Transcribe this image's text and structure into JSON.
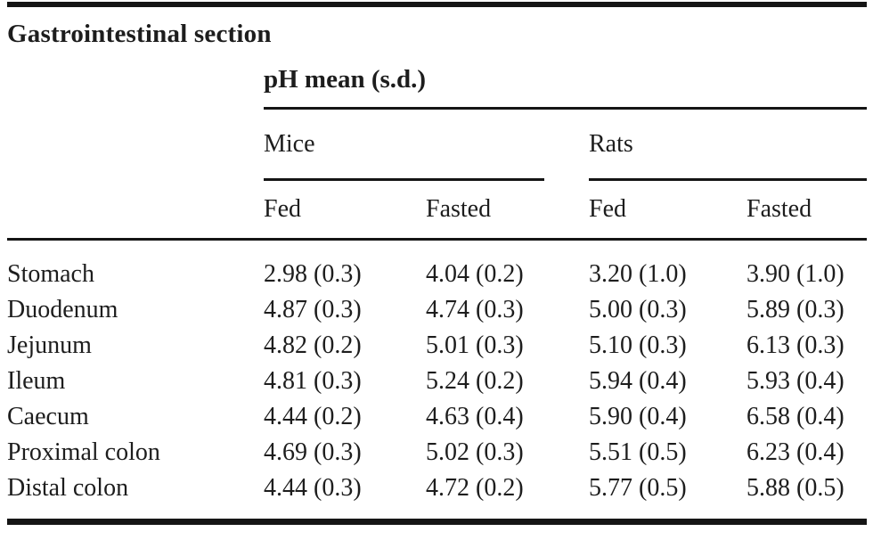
{
  "table": {
    "row_header_title": "Gastrointestinal section",
    "value_group_header": "pH mean (s.d.)",
    "species_headers": {
      "mice": "Mice",
      "rats": "Rats"
    },
    "condition_headers": [
      "Fed",
      "Fasted",
      "Fed",
      "Fasted"
    ],
    "rows": [
      {
        "section": "Stomach",
        "values": [
          "2.98 (0.3)",
          "4.04 (0.2)",
          "3.20 (1.0)",
          "3.90 (1.0)"
        ]
      },
      {
        "section": "Duodenum",
        "values": [
          "4.87 (0.3)",
          "4.74 (0.3)",
          "5.00 (0.3)",
          "5.89 (0.3)"
        ]
      },
      {
        "section": "Jejunum",
        "values": [
          "4.82 (0.2)",
          "5.01 (0.3)",
          "5.10 (0.3)",
          "6.13 (0.3)"
        ]
      },
      {
        "section": "Ileum",
        "values": [
          "4.81 (0.3)",
          "5.24 (0.2)",
          "5.94 (0.4)",
          "5.93 (0.4)"
        ]
      },
      {
        "section": "Caecum",
        "values": [
          "4.44 (0.2)",
          "4.63 (0.4)",
          "5.90 (0.4)",
          "6.58 (0.4)"
        ]
      },
      {
        "section": "Proximal colon",
        "values": [
          "4.69 (0.3)",
          "5.02 (0.3)",
          "5.51 (0.5)",
          "6.23 (0.4)"
        ]
      },
      {
        "section": "Distal colon",
        "values": [
          "4.44 (0.3)",
          "4.72 (0.2)",
          "5.77 (0.5)",
          "5.88 (0.5)"
        ]
      }
    ]
  },
  "colors": {
    "text": "#1d1d1d",
    "rule": "#151515",
    "background": "#ffffff"
  },
  "chart_data": {
    "type": "table",
    "title": "pH mean (s.d.)",
    "columns": [
      "Gastrointestinal section",
      "Mice Fed",
      "Mice Fasted",
      "Rats Fed",
      "Rats Fasted"
    ],
    "rows": [
      [
        "Stomach",
        "2.98 (0.3)",
        "4.04 (0.2)",
        "3.20 (1.0)",
        "3.90 (1.0)"
      ],
      [
        "Duodenum",
        "4.87 (0.3)",
        "4.74 (0.3)",
        "5.00 (0.3)",
        "5.89 (0.3)"
      ],
      [
        "Jejunum",
        "4.82 (0.2)",
        "5.01 (0.3)",
        "5.10 (0.3)",
        "6.13 (0.3)"
      ],
      [
        "Ileum",
        "4.81 (0.3)",
        "5.24 (0.2)",
        "5.94 (0.4)",
        "5.93 (0.4)"
      ],
      [
        "Caecum",
        "4.44 (0.2)",
        "4.63 (0.4)",
        "5.90 (0.4)",
        "6.58 (0.4)"
      ],
      [
        "Proximal colon",
        "4.69 (0.3)",
        "5.02 (0.3)",
        "5.51 (0.5)",
        "6.23 (0.4)"
      ],
      [
        "Distal colon",
        "4.44 (0.3)",
        "4.72 (0.2)",
        "5.77 (0.5)",
        "5.88 (0.5)"
      ]
    ],
    "means": {
      "mice_fed": [
        2.98,
        4.87,
        4.82,
        4.81,
        4.44,
        4.69,
        4.44
      ],
      "mice_fasted": [
        4.04,
        4.74,
        5.01,
        5.24,
        4.63,
        5.02,
        4.72
      ],
      "rats_fed": [
        3.2,
        5.0,
        5.1,
        5.94,
        5.9,
        5.51,
        5.77
      ],
      "rats_fasted": [
        3.9,
        5.89,
        6.13,
        5.93,
        6.58,
        6.23,
        5.88
      ]
    }
  }
}
